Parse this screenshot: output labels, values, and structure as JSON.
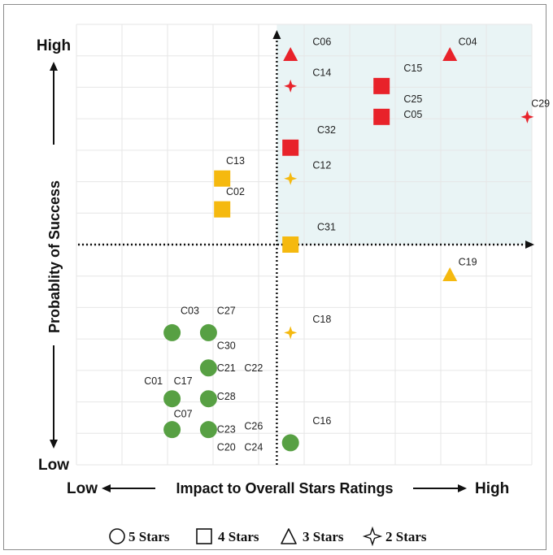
{
  "chart_data": {
    "type": "scatter",
    "title": "",
    "xlabel": "Impact to Overall Stars Ratings",
    "ylabel": "Probablity of Success",
    "x_low_label": "Low",
    "x_high_label": "High",
    "y_low_label": "Low",
    "y_high_label": "High",
    "xlim": [
      0,
      10
    ],
    "ylim": [
      0,
      10
    ],
    "divider": {
      "x": 4.4,
      "y": 5.0
    },
    "highlight_quadrant": "top-right",
    "grid": true,
    "legend_position": "bottom",
    "colors": {
      "green": "#57a043",
      "red": "#e8222a",
      "yellow": "#f5b90f",
      "highlight": "#e9f4f5"
    },
    "legend": [
      {
        "marker": "circle",
        "label": "5 Stars"
      },
      {
        "marker": "square",
        "label": "4 Stars"
      },
      {
        "marker": "triangle",
        "label": "3 Stars"
      },
      {
        "marker": "star4",
        "label": "2 Stars"
      }
    ],
    "points": [
      {
        "shape": "circle",
        "color": "green",
        "x": 2.1,
        "y": 3.0
      },
      {
        "shape": "circle",
        "color": "green",
        "x": 2.9,
        "y": 3.0
      },
      {
        "shape": "circle",
        "color": "green",
        "x": 2.9,
        "y": 2.2
      },
      {
        "shape": "circle",
        "color": "green",
        "x": 2.1,
        "y": 1.5
      },
      {
        "shape": "circle",
        "color": "green",
        "x": 2.9,
        "y": 1.5
      },
      {
        "shape": "circle",
        "color": "green",
        "x": 2.1,
        "y": 0.8
      },
      {
        "shape": "circle",
        "color": "green",
        "x": 2.9,
        "y": 0.8
      },
      {
        "shape": "circle",
        "color": "green",
        "x": 4.7,
        "y": 0.5
      },
      {
        "shape": "square",
        "color": "yellow",
        "x": 3.2,
        "y": 6.5
      },
      {
        "shape": "square",
        "color": "yellow",
        "x": 3.2,
        "y": 5.8
      },
      {
        "shape": "square",
        "color": "yellow",
        "x": 4.7,
        "y": 5.0
      },
      {
        "shape": "square",
        "color": "red",
        "x": 4.7,
        "y": 7.2
      },
      {
        "shape": "square",
        "color": "red",
        "x": 6.7,
        "y": 8.6
      },
      {
        "shape": "square",
        "color": "red",
        "x": 6.7,
        "y": 7.9
      },
      {
        "shape": "triangle",
        "color": "red",
        "x": 4.7,
        "y": 9.3
      },
      {
        "shape": "triangle",
        "color": "red",
        "x": 8.2,
        "y": 9.3
      },
      {
        "shape": "triangle",
        "color": "yellow",
        "x": 8.2,
        "y": 4.3
      },
      {
        "shape": "star4",
        "color": "red",
        "x": 4.7,
        "y": 8.6
      },
      {
        "shape": "star4",
        "color": "red",
        "x": 9.9,
        "y": 7.9
      },
      {
        "shape": "star4",
        "color": "yellow",
        "x": 4.7,
        "y": 6.5
      },
      {
        "shape": "star4",
        "color": "yellow",
        "x": 4.7,
        "y": 3.0
      }
    ],
    "labels": [
      {
        "text": "C06",
        "x": 5.4,
        "y": 9.6
      },
      {
        "text": "C04",
        "x": 8.6,
        "y": 9.6
      },
      {
        "text": "C14",
        "x": 5.4,
        "y": 8.9
      },
      {
        "text": "C15",
        "x": 7.4,
        "y": 9.0
      },
      {
        "text": "C25",
        "x": 7.4,
        "y": 8.3
      },
      {
        "text": "C05",
        "x": 7.4,
        "y": 7.95
      },
      {
        "text": "C29",
        "x": 10.2,
        "y": 8.2
      },
      {
        "text": "C32",
        "x": 5.5,
        "y": 7.6
      },
      {
        "text": "C13",
        "x": 3.5,
        "y": 6.9
      },
      {
        "text": "C12",
        "x": 5.4,
        "y": 6.8
      },
      {
        "text": "C02",
        "x": 3.5,
        "y": 6.2
      },
      {
        "text": "C31",
        "x": 5.5,
        "y": 5.4
      },
      {
        "text": "C19",
        "x": 8.6,
        "y": 4.6
      },
      {
        "text": "C03",
        "x": 2.5,
        "y": 3.5
      },
      {
        "text": "C27",
        "x": 3.3,
        "y": 3.5
      },
      {
        "text": "C18",
        "x": 5.4,
        "y": 3.3
      },
      {
        "text": "C30",
        "x": 3.3,
        "y": 2.7
      },
      {
        "text": "C21",
        "x": 3.3,
        "y": 2.2
      },
      {
        "text": "C22",
        "x": 3.9,
        "y": 2.2
      },
      {
        "text": "C01",
        "x": 1.7,
        "y": 1.9
      },
      {
        "text": "C17",
        "x": 2.35,
        "y": 1.9
      },
      {
        "text": "C28",
        "x": 3.3,
        "y": 1.55
      },
      {
        "text": "C07",
        "x": 2.35,
        "y": 1.15
      },
      {
        "text": "C23",
        "x": 3.3,
        "y": 0.8
      },
      {
        "text": "C26",
        "x": 3.9,
        "y": 0.88
      },
      {
        "text": "C20",
        "x": 3.3,
        "y": 0.4
      },
      {
        "text": "C24",
        "x": 3.9,
        "y": 0.4
      },
      {
        "text": "C16",
        "x": 5.4,
        "y": 1.0
      }
    ]
  }
}
